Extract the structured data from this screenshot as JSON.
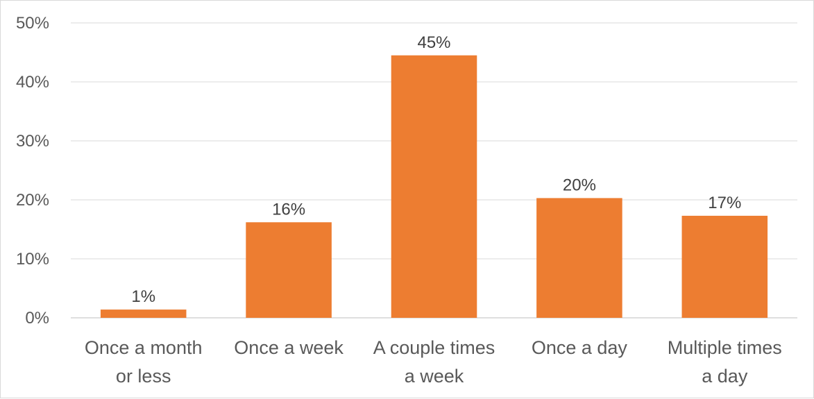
{
  "chart_data": {
    "type": "bar",
    "categories": [
      [
        "Once a month",
        "or less"
      ],
      [
        "Once a week"
      ],
      [
        "A couple times",
        "a week"
      ],
      [
        "Once a day"
      ],
      [
        "Multiple times",
        "a day"
      ]
    ],
    "values": [
      1.4,
      16.2,
      44.5,
      20.3,
      17.3
    ],
    "data_labels": [
      "1%",
      "16%",
      "45%",
      "20%",
      "17%"
    ],
    "y_ticks": [
      0,
      10,
      20,
      30,
      40,
      50
    ],
    "y_tick_labels": [
      "0%",
      "10%",
      "20%",
      "30%",
      "40%",
      "50%"
    ],
    "ylim": [
      0,
      50
    ],
    "bar_color": "#ED7D31",
    "grid": true,
    "legend": "none",
    "title": "",
    "xlabel": "",
    "ylabel": ""
  }
}
